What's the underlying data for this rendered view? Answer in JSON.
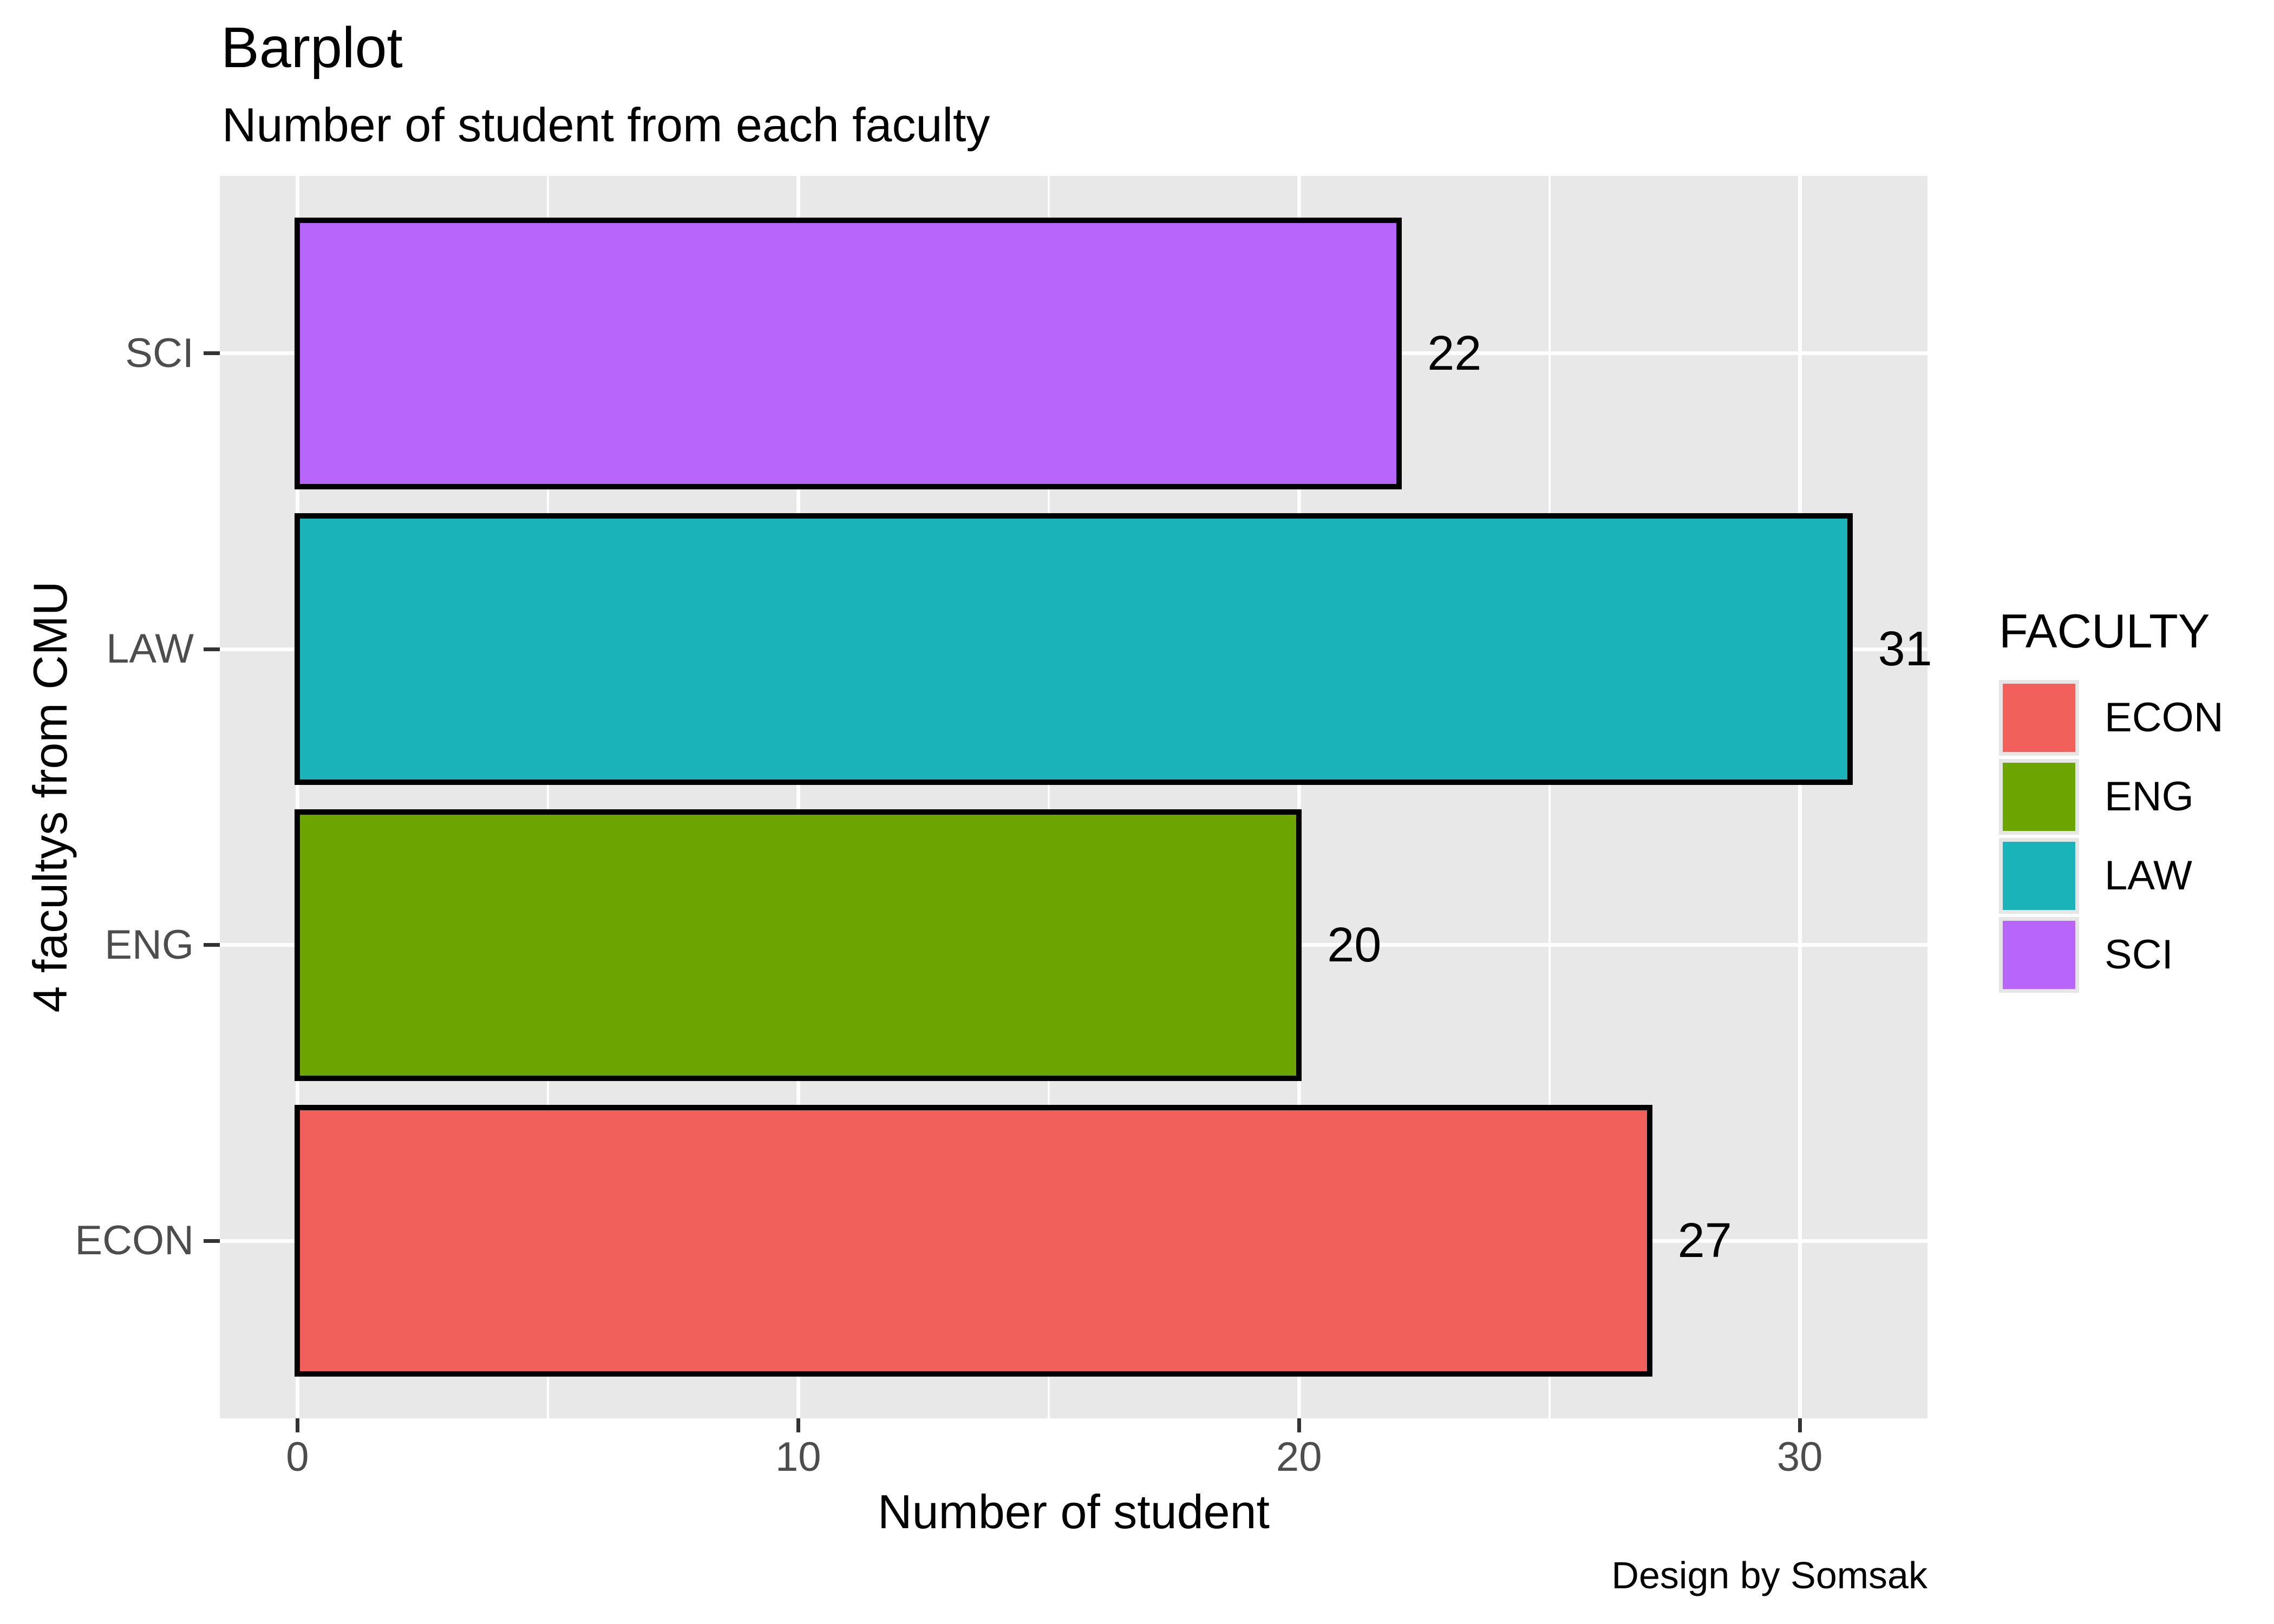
{
  "header": {
    "title": "Barplot",
    "subtitle": "Number of student from each faculty"
  },
  "caption": "Design by Somsak",
  "x_axis": {
    "title": "Number of student",
    "tick_labels": [
      "0",
      "10",
      "20",
      "30"
    ]
  },
  "y_axis": {
    "title": "4 facultys from CMU",
    "tick_labels": [
      "SCI",
      "LAW",
      "ENG",
      "ECON"
    ]
  },
  "legend": {
    "title": "FACULTY",
    "items": [
      {
        "label": "ECON",
        "color": "#F2605C"
      },
      {
        "label": "ENG",
        "color": "#6CA500"
      },
      {
        "label": "LAW",
        "color": "#1AB3B9"
      },
      {
        "label": "SCI",
        "color": "#B765FB"
      }
    ]
  },
  "chart_data": {
    "type": "bar",
    "orientation": "horizontal",
    "categories": [
      "SCI",
      "LAW",
      "ENG",
      "ECON"
    ],
    "values": [
      22,
      31,
      20,
      27
    ],
    "bar_colors": [
      "#B765FB",
      "#1AB3B9",
      "#6CA500",
      "#F2605C"
    ],
    "value_labels": [
      "22",
      "31",
      "20",
      "27"
    ],
    "title": "Barplot",
    "subtitle": "Number of student from each faculty",
    "xlabel": "Number of student",
    "ylabel": "4 facultys from CMU",
    "caption": "Design by Somsak",
    "x_ticks": [
      0,
      10,
      20,
      30
    ],
    "x_minor_ticks": [
      5,
      15,
      25
    ],
    "xlim": [
      -1.55,
      32.55
    ],
    "bar_width_fraction": 0.9,
    "grid": true,
    "panel_background": "#E8E8E8",
    "legend_title": "FACULTY",
    "legend_position": "right"
  },
  "colors": {
    "page_bg": "#FFFFFF",
    "panel_bg": "#E8E8E8",
    "grid": "#FFFFFF",
    "bar_stroke": "#000000",
    "axis_text": "#4D4D4D",
    "tick_mark": "#333333",
    "legend_key_bg": "#E6E6E6",
    "text": "#000000"
  }
}
